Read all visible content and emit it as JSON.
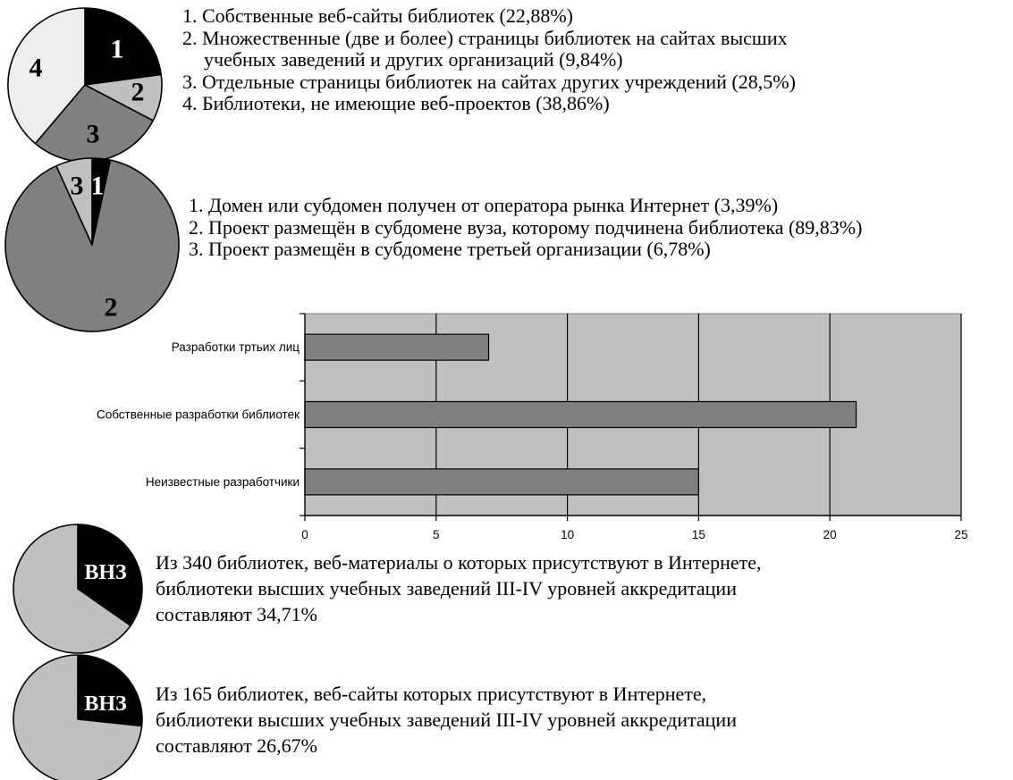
{
  "chart_data": [
    {
      "type": "pie",
      "slices": [
        {
          "label": "1",
          "name": "Собственные веб-сайты библиотек (22,88%)",
          "value": 22.88,
          "color": "#000000",
          "text_color": "#ffffff"
        },
        {
          "label": "2",
          "name": "Множественные (две и более) страницы библиотек на сайтах высших учебных заведений и других организаций (9,84%)",
          "value": 9.84,
          "color": "#c0c0c0",
          "text_color": "#000000"
        },
        {
          "label": "3",
          "name": "Отдельные страницы библиотек на сайтах других учреждений (28,5%)",
          "value": 28.5,
          "color": "#808080",
          "text_color": "#000000"
        },
        {
          "label": "4",
          "name": "Библиотеки, не имеющие веб-проектов (38,86%)",
          "value": 38.86,
          "color": "#eeeeee",
          "text_color": "#000000"
        }
      ],
      "legend": [
        {
          "line1": "1. Собственные веб-сайты библиотек (22,88%)"
        },
        {
          "line1": "2. Множественные (две и более) страницы библиотек на сайтах высших",
          "line2": "учебных заведений и других организаций (9,84%)"
        },
        {
          "line1": "3. Отдельные страницы библиотек на сайтах других учреждений (28,5%)"
        },
        {
          "line1": "4. Библиотеки, не имеющие веб-проектов (38,86%)"
        }
      ]
    },
    {
      "type": "pie",
      "slices": [
        {
          "label": "1",
          "name": "Домен или субдомен получен от оператора рынка Интернет (3,39%)",
          "value": 3.39,
          "color": "#000000",
          "text_color": "#ffffff"
        },
        {
          "label": "2",
          "name": "Проект размещён в субдомене вуза, которому подчинена библиотека (89,83%)",
          "value": 89.83,
          "color": "#808080",
          "text_color": "#000000"
        },
        {
          "label": "3",
          "name": "Проект размещён в субдомене третьей организации (6,78%)",
          "value": 6.78,
          "color": "#c0c0c0",
          "text_color": "#000000"
        }
      ],
      "legend": [
        "1. Домен или субдомен получен от оператора рынка Интернет (3,39%)",
        "2. Проект размещён в субдомене вуза, которому подчинена библиотека (89,83%)",
        "3. Проект размещён в субдомене третьей организации (6,78%)"
      ]
    },
    {
      "type": "bar",
      "orientation": "horizontal",
      "categories": [
        "Разработки тртьих лиц",
        "Собственные разработки библиотек",
        "Неизвестные разработчики"
      ],
      "values": [
        7,
        21,
        15
      ],
      "xlim": [
        0,
        25
      ],
      "xticks": [
        "0",
        "5",
        "10",
        "15",
        "20",
        "25"
      ],
      "grid": true,
      "bar_color": "#808080",
      "plot_background": "#c0c0c0"
    },
    {
      "type": "pie",
      "slices": [
        {
          "label": "ВНЗ",
          "value": 34.71,
          "color": "#000000",
          "text_color": "#ffffff"
        },
        {
          "label": "",
          "value": 65.29,
          "color": "#c0c0c0",
          "text_color": "#000000"
        }
      ],
      "caption": [
        "Из 340 библиотек, веб-материалы о которых присутствуют в Интернете,",
        "библиотеки высших учебных заведений ІІІ-IV уровней аккредитации",
        "составляют 34,71%"
      ]
    },
    {
      "type": "pie",
      "slices": [
        {
          "label": "ВНЗ",
          "value": 26.67,
          "color": "#000000",
          "text_color": "#ffffff"
        },
        {
          "label": "",
          "value": 73.33,
          "color": "#c0c0c0",
          "text_color": "#000000"
        }
      ],
      "caption": [
        "Из 165 библиотек, веб-сайты которых присутствуют в Интернете,",
        "библиотеки высших учебных заведений ІІІ-IV уровней аккредитации",
        "составляют 26,67%"
      ]
    }
  ]
}
